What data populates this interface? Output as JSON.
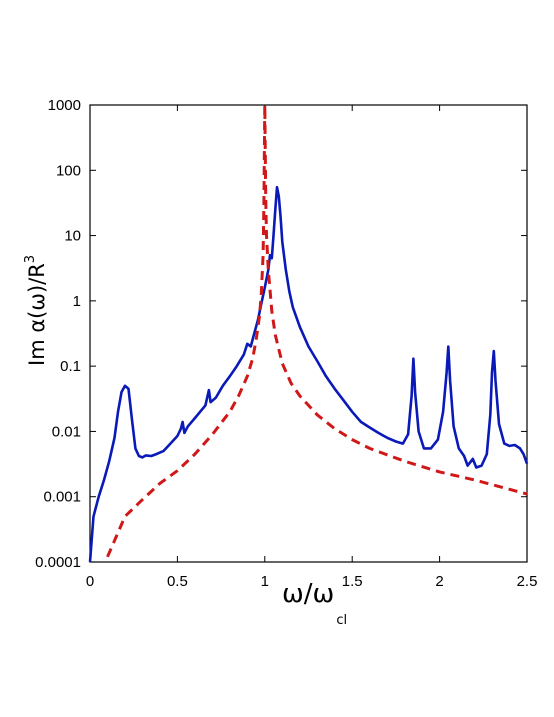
{
  "chart_data": {
    "type": "line",
    "title": "",
    "xlabel": "ω/ω",
    "xlabel_sub": "cl",
    "ylabel": "Im α(ω)/R",
    "ylabel_sup": "3",
    "xlim": [
      0,
      2.5
    ],
    "ylim": [
      0.0001,
      1000
    ],
    "y_scale": "log",
    "grid": false,
    "legend": "none",
    "x_ticks": [
      {
        "value": 0,
        "label": "0"
      },
      {
        "value": 0.5,
        "label": "0.5"
      },
      {
        "value": 1,
        "label": "1"
      },
      {
        "value": 1.5,
        "label": "1.5"
      },
      {
        "value": 2,
        "label": "2"
      },
      {
        "value": 2.5,
        "label": "2.5"
      }
    ],
    "y_ticks": [
      {
        "value": 0.0001,
        "label": "0.0001"
      },
      {
        "value": 0.001,
        "label": "0.001"
      },
      {
        "value": 0.01,
        "label": "0.01"
      },
      {
        "value": 0.1,
        "label": "0.1"
      },
      {
        "value": 1,
        "label": "1"
      },
      {
        "value": 10,
        "label": "10"
      },
      {
        "value": 100,
        "label": "100"
      },
      {
        "value": 1000,
        "label": "1000"
      }
    ],
    "series": [
      {
        "color": "#0a1ab8",
        "style": "solid",
        "points": [
          [
            0.0,
            0.0001
          ],
          [
            0.02,
            0.0005
          ],
          [
            0.05,
            0.001
          ],
          [
            0.08,
            0.0018
          ],
          [
            0.11,
            0.0035
          ],
          [
            0.14,
            0.008
          ],
          [
            0.16,
            0.02
          ],
          [
            0.18,
            0.04
          ],
          [
            0.2,
            0.05
          ],
          [
            0.22,
            0.045
          ],
          [
            0.24,
            0.015
          ],
          [
            0.26,
            0.0055
          ],
          [
            0.28,
            0.0042
          ],
          [
            0.3,
            0.004
          ],
          [
            0.32,
            0.0043
          ],
          [
            0.35,
            0.0042
          ],
          [
            0.38,
            0.0045
          ],
          [
            0.42,
            0.005
          ],
          [
            0.46,
            0.0065
          ],
          [
            0.5,
            0.0085
          ],
          [
            0.52,
            0.011
          ],
          [
            0.53,
            0.014
          ],
          [
            0.54,
            0.0095
          ],
          [
            0.56,
            0.012
          ],
          [
            0.6,
            0.016
          ],
          [
            0.63,
            0.02
          ],
          [
            0.66,
            0.025
          ],
          [
            0.68,
            0.043
          ],
          [
            0.69,
            0.028
          ],
          [
            0.72,
            0.033
          ],
          [
            0.76,
            0.05
          ],
          [
            0.8,
            0.07
          ],
          [
            0.84,
            0.1
          ],
          [
            0.88,
            0.15
          ],
          [
            0.9,
            0.22
          ],
          [
            0.92,
            0.2
          ],
          [
            0.94,
            0.32
          ],
          [
            0.96,
            0.5
          ],
          [
            0.98,
            0.9
          ],
          [
            1.0,
            1.6
          ],
          [
            1.02,
            3.0
          ],
          [
            1.03,
            5.0
          ],
          [
            1.04,
            4.5
          ],
          [
            1.05,
            10.0
          ],
          [
            1.06,
            25.0
          ],
          [
            1.07,
            55.0
          ],
          [
            1.08,
            40.0
          ],
          [
            1.09,
            20.0
          ],
          [
            1.1,
            8.0
          ],
          [
            1.12,
            3.0
          ],
          [
            1.14,
            1.4
          ],
          [
            1.16,
            0.8
          ],
          [
            1.2,
            0.4
          ],
          [
            1.25,
            0.2
          ],
          [
            1.3,
            0.12
          ],
          [
            1.35,
            0.07
          ],
          [
            1.4,
            0.045
          ],
          [
            1.45,
            0.03
          ],
          [
            1.5,
            0.02
          ],
          [
            1.55,
            0.014
          ],
          [
            1.6,
            0.0115
          ],
          [
            1.65,
            0.0095
          ],
          [
            1.7,
            0.008
          ],
          [
            1.75,
            0.007
          ],
          [
            1.79,
            0.0065
          ],
          [
            1.82,
            0.009
          ],
          [
            1.84,
            0.035
          ],
          [
            1.85,
            0.13
          ],
          [
            1.86,
            0.04
          ],
          [
            1.88,
            0.01
          ],
          [
            1.91,
            0.0055
          ],
          [
            1.95,
            0.0055
          ],
          [
            1.99,
            0.0075
          ],
          [
            2.02,
            0.02
          ],
          [
            2.04,
            0.08
          ],
          [
            2.05,
            0.2
          ],
          [
            2.06,
            0.06
          ],
          [
            2.08,
            0.012
          ],
          [
            2.11,
            0.0055
          ],
          [
            2.14,
            0.0042
          ],
          [
            2.16,
            0.003
          ],
          [
            2.18,
            0.0035
          ],
          [
            2.19,
            0.0038
          ],
          [
            2.21,
            0.0028
          ],
          [
            2.24,
            0.003
          ],
          [
            2.27,
            0.0045
          ],
          [
            2.29,
            0.018
          ],
          [
            2.3,
            0.08
          ],
          [
            2.31,
            0.17
          ],
          [
            2.32,
            0.06
          ],
          [
            2.34,
            0.013
          ],
          [
            2.37,
            0.0065
          ],
          [
            2.4,
            0.006
          ],
          [
            2.43,
            0.0062
          ],
          [
            2.46,
            0.0055
          ],
          [
            2.48,
            0.0045
          ],
          [
            2.5,
            0.0032
          ]
        ]
      },
      {
        "color": "#d01818",
        "style": "dashed",
        "points": [
          [
            0.1,
            0.00012
          ],
          [
            0.2,
            0.0005
          ],
          [
            0.3,
            0.0009
          ],
          [
            0.4,
            0.0016
          ],
          [
            0.5,
            0.0025
          ],
          [
            0.6,
            0.0045
          ],
          [
            0.7,
            0.009
          ],
          [
            0.8,
            0.02
          ],
          [
            0.85,
            0.035
          ],
          [
            0.9,
            0.07
          ],
          [
            0.93,
            0.13
          ],
          [
            0.95,
            0.25
          ],
          [
            0.97,
            0.6
          ],
          [
            0.98,
            1.3
          ],
          [
            0.99,
            5.0
          ],
          [
            0.995,
            30.0
          ],
          [
            1.0,
            1000
          ],
          [
            1.0,
            1000
          ],
          [
            1.005,
            40.0
          ],
          [
            1.01,
            10.0
          ],
          [
            1.02,
            3.0
          ],
          [
            1.04,
            0.7
          ],
          [
            1.06,
            0.3
          ],
          [
            1.1,
            0.11
          ],
          [
            1.15,
            0.055
          ],
          [
            1.2,
            0.035
          ],
          [
            1.3,
            0.018
          ],
          [
            1.4,
            0.011
          ],
          [
            1.5,
            0.0075
          ],
          [
            1.6,
            0.0055
          ],
          [
            1.8,
            0.0035
          ],
          [
            2.0,
            0.0024
          ],
          [
            2.2,
            0.0018
          ],
          [
            2.4,
            0.0013
          ],
          [
            2.5,
            0.0011
          ]
        ]
      }
    ]
  }
}
